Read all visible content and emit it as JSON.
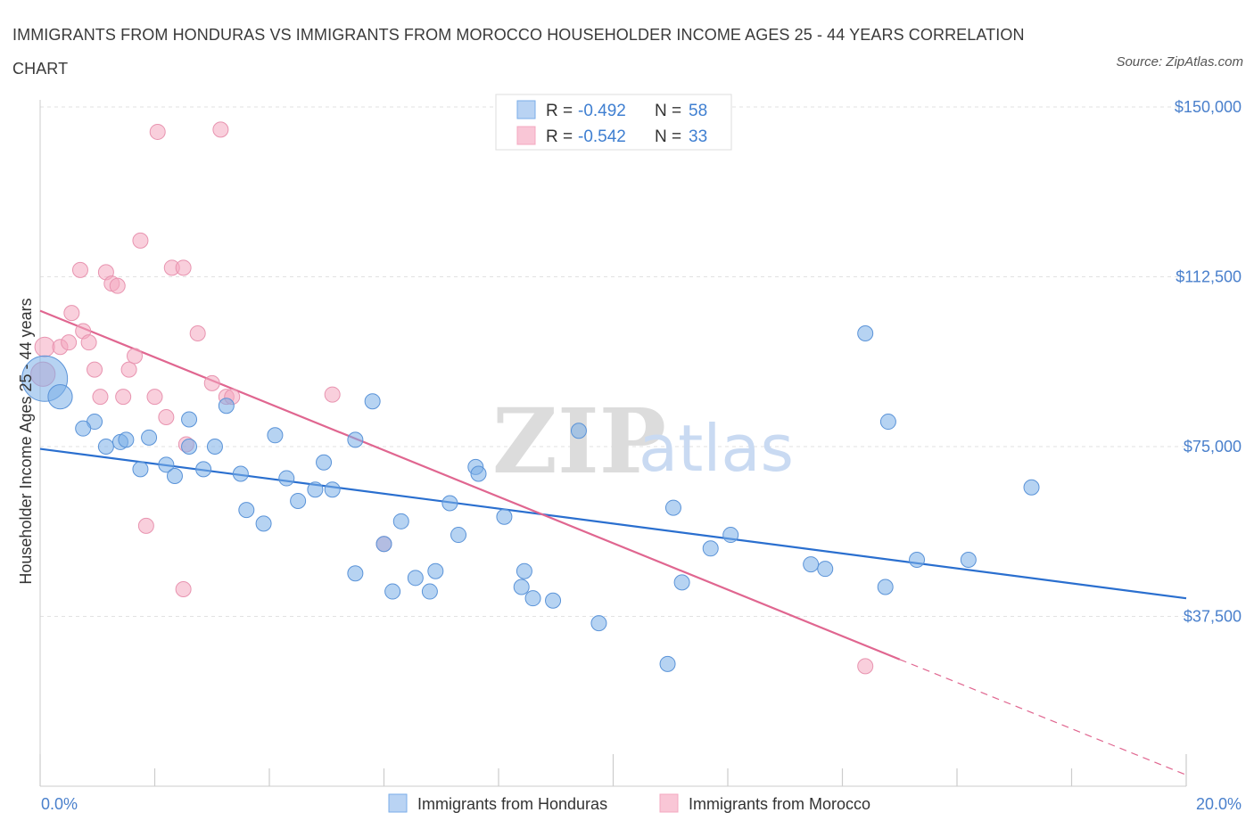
{
  "title": "IMMIGRANTS FROM HONDURAS VS IMMIGRANTS FROM MOROCCO HOUSEHOLDER INCOME AGES 25 - 44 YEARS CORRELATION CHART",
  "source": "Source: ZipAtlas.com",
  "watermark": {
    "zip": "ZIP",
    "atlas": "atlas"
  },
  "colors": {
    "honduras": "#7aaee8",
    "honduras_line": "#2a6fcf",
    "morocco": "#f4a8c0",
    "morocco_line": "#e06690"
  },
  "legend": {
    "r_label": "R =",
    "n_label": "N =",
    "honduras": {
      "r": "-0.492",
      "n": "58"
    },
    "morocco": {
      "r": "-0.542",
      "n": "33"
    }
  },
  "chart_data": {
    "type": "scatter",
    "title": "IMMIGRANTS FROM HONDURAS VS IMMIGRANTS FROM MOROCCO HOUSEHOLDER INCOME AGES 25 - 44 YEARS CORRELATION CHART",
    "xlabel": "",
    "ylabel": "Householder Income Ages 25 - 44 years",
    "xlim": [
      0,
      20
    ],
    "ylim": [
      0,
      150000
    ],
    "x_tick_labels": [
      "0.0%",
      "20.0%"
    ],
    "y_ticks": [
      37500,
      75000,
      112500,
      150000
    ],
    "y_tick_labels": [
      "$37,500",
      "$75,000",
      "$112,500",
      "$150,000"
    ],
    "grid": true,
    "legend_position": "bottom",
    "series": [
      {
        "name": "Immigrants from Honduras",
        "points": [
          [
            0.08,
            90000,
            3.0
          ],
          [
            0.35,
            86000,
            1.6
          ],
          [
            0.95,
            80500,
            1.0
          ],
          [
            0.75,
            79000,
            1.0
          ],
          [
            1.4,
            76000,
            1.0
          ],
          [
            1.15,
            75000,
            1.0
          ],
          [
            1.5,
            76500,
            1.0
          ],
          [
            1.9,
            77000,
            1.0
          ],
          [
            2.2,
            71000,
            1.0
          ],
          [
            1.75,
            70000,
            1.0
          ],
          [
            2.35,
            68500,
            1.0
          ],
          [
            2.6,
            75000,
            1.0
          ],
          [
            2.6,
            81000,
            1.0
          ],
          [
            2.85,
            70000,
            1.0
          ],
          [
            3.05,
            75000,
            1.0
          ],
          [
            3.25,
            84000,
            1.0
          ],
          [
            3.5,
            69000,
            1.0
          ],
          [
            3.6,
            61000,
            1.0
          ],
          [
            3.9,
            58000,
            1.0
          ],
          [
            4.1,
            77500,
            1.0
          ],
          [
            4.3,
            68000,
            1.0
          ],
          [
            4.5,
            63000,
            1.0
          ],
          [
            4.8,
            65500,
            1.0
          ],
          [
            4.95,
            71500,
            1.0
          ],
          [
            5.1,
            65500,
            1.0
          ],
          [
            5.5,
            76500,
            1.0
          ],
          [
            5.8,
            85000,
            1.0
          ],
          [
            5.5,
            47000,
            1.0
          ],
          [
            6.0,
            53500,
            1.0
          ],
          [
            6.15,
            43000,
            1.0
          ],
          [
            6.3,
            58500,
            1.0
          ],
          [
            6.55,
            46000,
            1.0
          ],
          [
            6.8,
            43000,
            1.0
          ],
          [
            6.9,
            47500,
            1.0
          ],
          [
            7.15,
            62500,
            1.0
          ],
          [
            7.3,
            55500,
            1.0
          ],
          [
            7.6,
            70500,
            1.0
          ],
          [
            7.65,
            69000,
            1.0
          ],
          [
            8.1,
            59500,
            1.0
          ],
          [
            8.4,
            44000,
            1.0
          ],
          [
            8.45,
            47500,
            1.0
          ],
          [
            8.6,
            41500,
            1.0
          ],
          [
            8.95,
            41000,
            1.0
          ],
          [
            9.4,
            78500,
            1.0
          ],
          [
            9.75,
            36000,
            1.0
          ],
          [
            11.05,
            61500,
            1.0
          ],
          [
            11.2,
            45000,
            1.0
          ],
          [
            11.7,
            52500,
            1.0
          ],
          [
            12.05,
            55500,
            1.0
          ],
          [
            13.45,
            49000,
            1.0
          ],
          [
            13.7,
            48000,
            1.0
          ],
          [
            14.4,
            100000,
            1.0
          ],
          [
            14.8,
            80500,
            1.0
          ],
          [
            14.75,
            44000,
            1.0
          ],
          [
            15.3,
            50000,
            1.0
          ],
          [
            16.2,
            50000,
            1.0
          ],
          [
            17.3,
            66000,
            1.0
          ],
          [
            10.95,
            27000,
            1.0
          ]
        ],
        "trend": {
          "x0": 0,
          "y0": 74500,
          "x1": 20,
          "y1": 41500
        }
      },
      {
        "name": "Immigrants from Morocco",
        "points": [
          [
            0.08,
            97000,
            1.3
          ],
          [
            0.05,
            91000,
            1.6
          ],
          [
            0.35,
            97000,
            1.0
          ],
          [
            0.55,
            104500,
            1.0
          ],
          [
            0.5,
            98000,
            1.0
          ],
          [
            0.75,
            100500,
            1.0
          ],
          [
            0.7,
            114000,
            1.0
          ],
          [
            0.85,
            98000,
            1.0
          ],
          [
            0.95,
            92000,
            1.0
          ],
          [
            1.05,
            86000,
            1.0
          ],
          [
            1.15,
            113500,
            1.0
          ],
          [
            1.25,
            111000,
            1.0
          ],
          [
            1.35,
            110500,
            1.0
          ],
          [
            1.45,
            86000,
            1.0
          ],
          [
            1.55,
            92000,
            1.0
          ],
          [
            1.65,
            95000,
            1.0
          ],
          [
            1.75,
            120500,
            1.0
          ],
          [
            2.05,
            144500,
            1.0
          ],
          [
            1.85,
            57500,
            1.0
          ],
          [
            2.0,
            86000,
            1.0
          ],
          [
            2.2,
            81500,
            1.0
          ],
          [
            2.3,
            114500,
            1.0
          ],
          [
            2.5,
            114500,
            1.0
          ],
          [
            2.5,
            43500,
            1.0
          ],
          [
            2.55,
            75500,
            1.0
          ],
          [
            2.75,
            100000,
            1.0
          ],
          [
            3.0,
            89000,
            1.0
          ],
          [
            3.25,
            86000,
            1.0
          ],
          [
            3.35,
            86000,
            1.0
          ],
          [
            3.15,
            145000,
            1.0
          ],
          [
            5.1,
            86500,
            1.0
          ],
          [
            6.0,
            53500,
            1.0
          ],
          [
            14.4,
            26500,
            1.0
          ]
        ],
        "trend": {
          "x0": 0,
          "y0": 105000,
          "x1": 15.0,
          "y1": 28000
        },
        "trend_dashed": {
          "x0": 15.0,
          "y0": 28000,
          "x1": 20,
          "y1": 2500
        }
      }
    ]
  }
}
